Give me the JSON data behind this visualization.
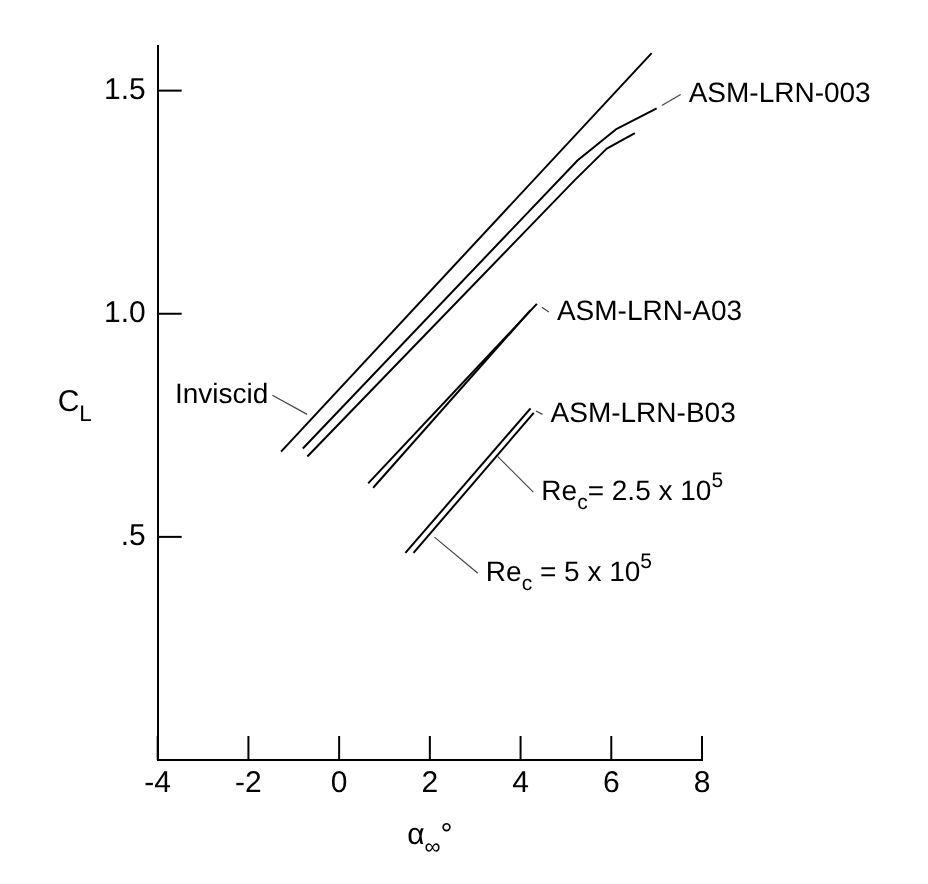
{
  "chart_data": {
    "type": "line",
    "xlabel": "α$_{∞}$°",
    "ylabel": "C$_{L}$",
    "xlim": [
      -4,
      8
    ],
    "ylim": [
      0,
      1.6
    ],
    "xticks": [
      -4,
      -2,
      0,
      2,
      4,
      6,
      8
    ],
    "yticks": [
      {
        "value": 0.5,
        "label": ".5"
      },
      {
        "value": 1.0,
        "label": "1.0"
      },
      {
        "value": 1.5,
        "label": "1.5"
      }
    ],
    "marker": "none",
    "line_style": "solid",
    "series": [
      {
        "color": "#000000",
        "x": [
          -1.28,
          6.89
        ],
        "values": [
          0.691,
          1.584
        ]
      },
      {
        "color": "#000000",
        "x": [
          -0.8,
          5.26,
          6.1,
          7.0
        ],
        "values": [
          0.698,
          1.344,
          1.413,
          1.46
        ]
      },
      {
        "color": "#000000",
        "x": [
          -0.7,
          5.2,
          5.9,
          6.52
        ],
        "values": [
          0.68,
          1.3,
          1.37,
          1.405
        ]
      },
      {
        "color": "#000000",
        "x": [
          0.64,
          4.36
        ],
        "values": [
          0.62,
          1.022
        ]
      },
      {
        "color": "#000000",
        "x": [
          0.75,
          4.22
        ],
        "values": [
          0.61,
          1.008
        ]
      },
      {
        "color": "#000000",
        "x": [
          1.46,
          4.22
        ],
        "values": [
          0.464,
          0.788
        ]
      },
      {
        "color": "#000000",
        "x": [
          1.64,
          4.29
        ],
        "values": [
          0.464,
          0.778
        ]
      }
    ],
    "annotations": [
      {
        "text": "ASM-LRN-003",
        "x": 7.0,
        "y": 1.46
      },
      {
        "text": "ASM-LRN-A03",
        "x": 4.36,
        "y": 1.022
      },
      {
        "text": "ASM-LRN-B03",
        "x": 4.22,
        "y": 0.788
      },
      {
        "text": "Inviscid",
        "x": -0.59,
        "y": 0.768
      },
      {
        "text": "Re$_{c}$= 2.5 x 10$^{5}$",
        "x": 3.4,
        "y": 0.69
      },
      {
        "text": "Re$_{c}$ = 5 x 10$^{5}$",
        "x": 2.0,
        "y": 0.508
      }
    ]
  }
}
